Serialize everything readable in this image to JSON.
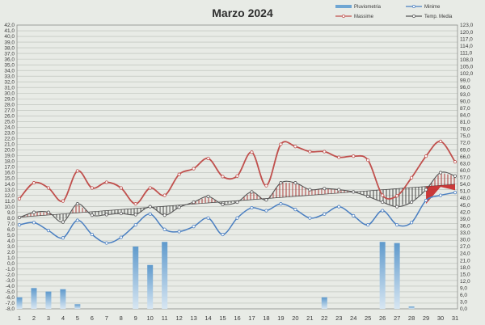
{
  "chart_data": {
    "type": "line",
    "title": "Marzo 2024",
    "x": [
      1,
      2,
      3,
      4,
      5,
      6,
      7,
      8,
      9,
      10,
      11,
      12,
      13,
      14,
      15,
      16,
      17,
      18,
      19,
      20,
      21,
      22,
      23,
      24,
      25,
      26,
      27,
      28,
      29,
      30,
      31
    ],
    "y_left": {
      "min": -8,
      "max": 42,
      "step": 1
    },
    "y_right": {
      "min": 0,
      "max": 123,
      "step": 3
    },
    "legend_position": "top-right",
    "grid": true,
    "series": [
      {
        "name": "Pluviometria",
        "type": "bar",
        "axis": "right",
        "color": "#6fa6d3",
        "values": [
          5.0,
          9.0,
          7.5,
          8.5,
          2.0,
          0,
          0,
          0,
          27.0,
          19.0,
          29.0,
          0,
          0,
          0,
          0,
          0,
          0,
          0,
          0,
          0,
          0,
          5.0,
          0,
          0,
          0,
          29.0,
          28.5,
          1.0,
          0,
          0,
          0
        ]
      },
      {
        "name": "Minime",
        "type": "line",
        "axis": "left",
        "color": "#4a7fc1",
        "values": [
          6.8,
          7.2,
          5.8,
          4.5,
          7.6,
          5.1,
          3.6,
          4.6,
          6.8,
          8.7,
          6.0,
          5.6,
          6.5,
          8.0,
          5.1,
          8.0,
          9.8,
          9.3,
          10.5,
          9.5,
          8.0,
          8.7,
          10.0,
          8.4,
          6.8,
          9.3,
          6.8,
          7.2,
          11.1,
          12.0,
          12.5
        ]
      },
      {
        "name": "Massime",
        "type": "line",
        "axis": "left",
        "color": "#c0504d",
        "values": [
          11.4,
          14.2,
          13.3,
          11.0,
          16.3,
          13.3,
          14.3,
          13.3,
          10.5,
          13.3,
          12.0,
          15.7,
          16.7,
          18.5,
          15.3,
          15.4,
          19.6,
          13.7,
          21.0,
          20.6,
          19.7,
          19.7,
          18.7,
          18.9,
          18.2,
          12.0,
          11.9,
          15.1,
          18.9,
          21.5,
          17.9
        ]
      },
      {
        "name": "Temp. Media",
        "type": "line",
        "axis": "left",
        "color": "#555555",
        "values": [
          8.1,
          9.0,
          9.0,
          7.3,
          10.5,
          8.5,
          8.6,
          8.8,
          8.6,
          10.0,
          8.5,
          9.9,
          10.8,
          11.8,
          10.4,
          10.8,
          12.6,
          11.2,
          14.2,
          14.2,
          13.0,
          13.2,
          13.0,
          12.6,
          11.8,
          10.8,
          10.0,
          10.8,
          13.0,
          16.0,
          15.4
        ]
      }
    ]
  }
}
